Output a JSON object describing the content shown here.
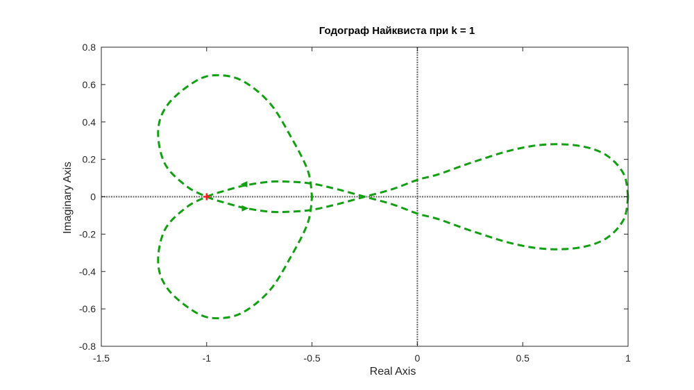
{
  "chart_data": {
    "type": "line",
    "title": "Годограф Найквиста при k = 1",
    "xlabel": "Real Axis",
    "ylabel": "Imaginary Axis",
    "xlim": [
      -1.5,
      1
    ],
    "ylim": [
      -0.8,
      0.8
    ],
    "xticks": [
      -1.5,
      -1,
      -0.5,
      0,
      0.5,
      1
    ],
    "xtick_labels": [
      "-1.5",
      "-1",
      "-0.5",
      "0",
      "0.5",
      "1"
    ],
    "yticks": [
      -0.8,
      -0.6,
      -0.4,
      -0.2,
      0,
      0.2,
      0.4,
      0.6,
      0.8
    ],
    "ytick_labels": [
      "-0.8",
      "-0.6",
      "-0.4",
      "-0.2",
      "0",
      "0.2",
      "0.4",
      "0.6",
      "0.8"
    ],
    "grid": false,
    "colors": {
      "curve": "#12a012",
      "critical_point": "#ff1a1a",
      "axes_lines": "#5f5f5f",
      "frame": "#262626"
    },
    "critical_point": {
      "x": -1,
      "y": 0
    },
    "series": [
      {
        "style": "dashed",
        "x": [
          1.0,
          0.98,
          0.9,
          0.78,
          0.62,
          0.45,
          0.25,
          0.1,
          0.0,
          -0.12,
          -0.25,
          -0.38,
          -0.5,
          -0.6,
          -0.7,
          -0.82,
          -0.92,
          -1.0,
          -1.1,
          -1.2,
          -1.23,
          -1.18,
          -1.05,
          -0.95,
          -0.83,
          -0.7,
          -0.6,
          -0.52,
          -0.5
        ],
        "y": [
          0.0,
          0.12,
          0.22,
          0.27,
          0.28,
          0.25,
          0.18,
          0.12,
          0.09,
          0.04,
          0.0,
          -0.04,
          -0.07,
          -0.08,
          -0.08,
          -0.06,
          -0.03,
          0.0,
          0.06,
          0.18,
          0.36,
          0.5,
          0.62,
          0.65,
          0.62,
          0.5,
          0.32,
          0.14,
          0.0
        ]
      },
      {
        "style": "dashed",
        "x": [
          1.0,
          0.98,
          0.9,
          0.78,
          0.62,
          0.45,
          0.25,
          0.1,
          0.0,
          -0.12,
          -0.25,
          -0.38,
          -0.5,
          -0.6,
          -0.7,
          -0.82,
          -0.92,
          -1.0,
          -1.1,
          -1.2,
          -1.23,
          -1.18,
          -1.05,
          -0.95,
          -0.83,
          -0.7,
          -0.6,
          -0.52,
          -0.5
        ],
        "y": [
          0.0,
          -0.12,
          -0.22,
          -0.27,
          -0.28,
          -0.25,
          -0.18,
          -0.12,
          -0.09,
          -0.04,
          0.0,
          0.04,
          0.07,
          0.08,
          0.08,
          0.06,
          0.03,
          0.0,
          -0.06,
          -0.18,
          -0.36,
          -0.5,
          -0.62,
          -0.65,
          -0.62,
          -0.5,
          -0.32,
          -0.14,
          0.0
        ]
      }
    ],
    "arrows": [
      {
        "x": -0.82,
        "y": 0.067,
        "direction": "left"
      },
      {
        "x": -0.82,
        "y": -0.062,
        "direction": "right"
      }
    ]
  }
}
